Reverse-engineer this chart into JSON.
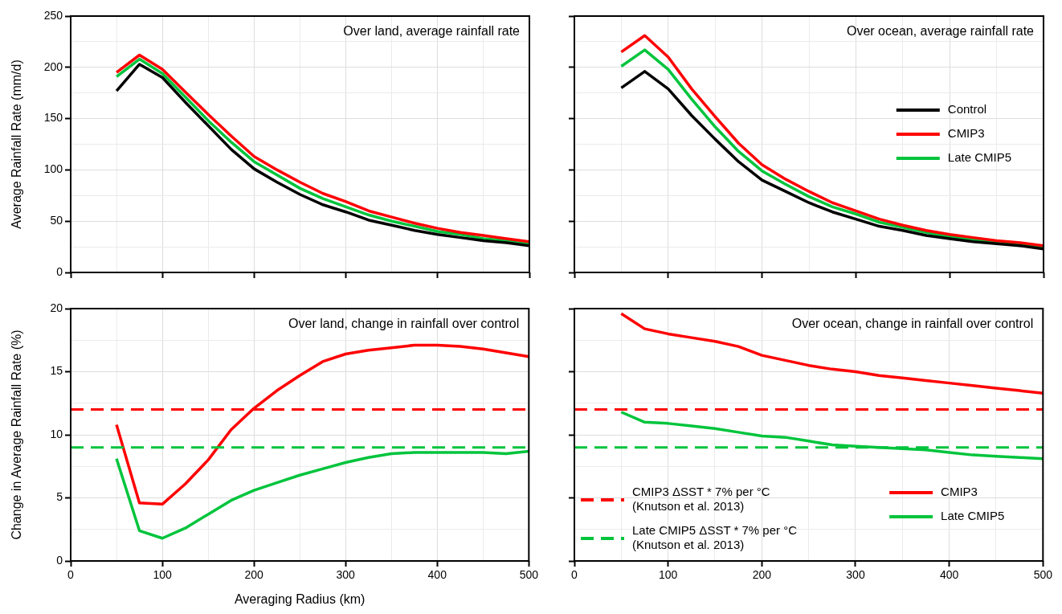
{
  "chart_data": [
    {
      "type": "line",
      "title": "Over land, average rainfall rate",
      "ylabel": "Average Rainfall Rate (mm/d)",
      "marker": "none",
      "grid": true,
      "tick_labels": "y",
      "x": [
        50,
        75,
        100,
        125,
        150,
        175,
        200,
        225,
        250,
        275,
        300,
        325,
        350,
        375,
        400,
        425,
        450,
        475,
        500
      ],
      "xlim": [
        0,
        500
      ],
      "xticks": [
        0,
        {
          "value": 50,
          "label": null
        },
        100,
        {
          "value": 150,
          "label": null
        },
        200,
        {
          "value": 250,
          "label": null
        },
        300,
        {
          "value": 350,
          "label": null
        },
        400,
        {
          "value": 450,
          "label": null
        },
        500
      ],
      "ylim": [
        0,
        250
      ],
      "yticks": [
        0,
        {
          "value": 25,
          "label": null
        },
        50,
        {
          "value": 75,
          "label": null
        },
        100,
        {
          "value": 125,
          "label": null
        },
        150,
        {
          "value": 175,
          "label": null
        },
        200,
        {
          "value": 225,
          "label": null
        },
        250
      ],
      "series": [
        {
          "color": "#000000",
          "values": [
            177,
            203,
            190,
            166,
            143,
            120,
            101,
            88,
            76,
            66,
            59,
            51,
            46,
            41,
            37,
            34,
            31,
            29,
            26
          ]
        },
        {
          "color": "#ff0000",
          "values": [
            195,
            212,
            198,
            176,
            154,
            133,
            113,
            100,
            88,
            77,
            69,
            60,
            54,
            48,
            43,
            39,
            36,
            33,
            30
          ]
        },
        {
          "color": "#00c43c",
          "values": [
            191,
            208,
            194,
            171,
            148,
            127,
            108,
            95,
            82,
            72,
            64,
            56,
            50,
            45,
            40,
            37,
            33,
            31,
            28
          ]
        }
      ]
    },
    {
      "type": "line",
      "title": "Over ocean, average rainfall rate",
      "marker": "none",
      "grid": true,
      "tick_labels": false,
      "legend": "right",
      "x": [
        50,
        75,
        100,
        125,
        150,
        175,
        200,
        225,
        250,
        275,
        300,
        325,
        350,
        375,
        400,
        425,
        450,
        475,
        500
      ],
      "xlim": [
        0,
        500
      ],
      "xticks": [
        0,
        {
          "value": 50,
          "label": null
        },
        100,
        {
          "value": 150,
          "label": null
        },
        200,
        {
          "value": 250,
          "label": null
        },
        300,
        {
          "value": 350,
          "label": null
        },
        400,
        {
          "value": 450,
          "label": null
        },
        500
      ],
      "ylim": [
        0,
        250
      ],
      "yticks": [
        0,
        {
          "value": 25,
          "label": null
        },
        50,
        {
          "value": 75,
          "label": null
        },
        100,
        {
          "value": 125,
          "label": null
        },
        150,
        {
          "value": 175,
          "label": null
        },
        200,
        {
          "value": 225,
          "label": null
        },
        250
      ],
      "series": [
        {
          "name": "Control",
          "color": "#000000",
          "values": [
            180,
            196,
            179,
            153,
            130,
            108,
            90,
            79,
            68,
            59,
            52,
            45,
            41,
            36,
            33,
            30,
            28,
            26,
            23
          ]
        },
        {
          "name": "CMIP3",
          "color": "#ff0000",
          "values": [
            215,
            231,
            210,
            179,
            152,
            126,
            105,
            91,
            79,
            68,
            60,
            52,
            46,
            41,
            37,
            34,
            31,
            29,
            26
          ]
        },
        {
          "name": "Late CMIP5",
          "color": "#00c43c",
          "values": [
            201,
            217,
            198,
            169,
            142,
            118,
            99,
            86,
            74,
            64,
            57,
            49,
            44,
            39,
            35,
            32,
            29,
            27,
            25
          ]
        }
      ]
    },
    {
      "type": "line",
      "title": "Over land, change in rainfall over control",
      "ylabel": "Change in Average Rainfall Rate (%)",
      "xlabel": "Averaging Radius (km)",
      "marker": "none",
      "grid": true,
      "x": [
        50,
        75,
        100,
        125,
        150,
        175,
        200,
        225,
        250,
        275,
        300,
        325,
        350,
        375,
        400,
        425,
        450,
        475,
        500
      ],
      "xlim": [
        0,
        500
      ],
      "xticks": [
        0,
        {
          "value": 50,
          "label": null
        },
        100,
        {
          "value": 150,
          "label": null
        },
        200,
        {
          "value": 250,
          "label": null
        },
        300,
        {
          "value": 350,
          "label": null
        },
        400,
        {
          "value": 450,
          "label": null
        },
        500
      ],
      "ylim": [
        0,
        20
      ],
      "yticks": [
        0,
        {
          "value": 2.5,
          "label": null
        },
        5,
        {
          "value": 7.5,
          "label": null
        },
        10,
        {
          "value": 12.5,
          "label": null
        },
        15,
        {
          "value": 17.5,
          "label": null
        },
        20
      ],
      "ref_lines": [
        {
          "axis": "y",
          "value": 12,
          "color": "#ff0000",
          "line_style": "dashed"
        },
        {
          "axis": "y",
          "value": 9,
          "color": "#00c43c",
          "line_style": "dashed"
        }
      ],
      "series": [
        {
          "color": "#ff0000",
          "values": [
            10.8,
            4.6,
            4.5,
            6.1,
            8.0,
            10.4,
            12.1,
            13.5,
            14.7,
            15.8,
            16.4,
            16.7,
            16.9,
            17.1,
            17.1,
            17.0,
            16.8,
            16.5,
            16.2
          ]
        },
        {
          "color": "#00c43c",
          "values": [
            8.1,
            2.4,
            1.8,
            2.6,
            3.7,
            4.8,
            5.6,
            6.2,
            6.8,
            7.3,
            7.8,
            8.2,
            8.5,
            8.6,
            8.6,
            8.6,
            8.6,
            8.5,
            8.7
          ]
        }
      ]
    },
    {
      "type": "line",
      "title": "Over ocean, change in rainfall over control",
      "marker": "none",
      "grid": true,
      "tick_labels": "x",
      "legend": "bottom",
      "x": [
        50,
        75,
        100,
        125,
        150,
        175,
        200,
        225,
        250,
        275,
        300,
        325,
        350,
        375,
        400,
        425,
        450,
        475,
        500
      ],
      "xlim": [
        0,
        500
      ],
      "xticks": [
        0,
        {
          "value": 50,
          "label": null
        },
        100,
        {
          "value": 150,
          "label": null
        },
        200,
        {
          "value": 250,
          "label": null
        },
        300,
        {
          "value": 350,
          "label": null
        },
        400,
        {
          "value": 450,
          "label": null
        },
        500
      ],
      "ylim": [
        0,
        20
      ],
      "yticks": [
        0,
        {
          "value": 2.5,
          "label": null
        },
        5,
        {
          "value": 7.5,
          "label": null
        },
        10,
        {
          "value": 12.5,
          "label": null
        },
        15,
        {
          "value": 17.5,
          "label": null
        },
        20
      ],
      "ref_lines": [
        {
          "axis": "y",
          "value": 12,
          "color": "#ff0000",
          "line_style": "dashed",
          "label": "CMIP3 ΔSST * 7% per °C\n(Knutson et al. 2013)"
        },
        {
          "axis": "y",
          "value": 9,
          "color": "#00c43c",
          "line_style": "dashed",
          "label": "Late CMIP5 ΔSST * 7% per °C\n(Knutson et al. 2013)"
        }
      ],
      "series": [
        {
          "name": "CMIP3",
          "color": "#ff0000",
          "values": [
            19.6,
            18.4,
            18.0,
            17.7,
            17.4,
            17.0,
            16.3,
            15.9,
            15.5,
            15.2,
            15.0,
            14.7,
            14.5,
            14.3,
            14.1,
            13.9,
            13.7,
            13.5,
            13.3
          ]
        },
        {
          "name": "Late CMIP5",
          "color": "#00c43c",
          "values": [
            11.8,
            11.0,
            10.9,
            10.7,
            10.5,
            10.2,
            9.9,
            9.8,
            9.5,
            9.2,
            9.1,
            9.0,
            8.9,
            8.8,
            8.6,
            8.4,
            8.3,
            8.2,
            8.1
          ]
        }
      ]
    }
  ]
}
